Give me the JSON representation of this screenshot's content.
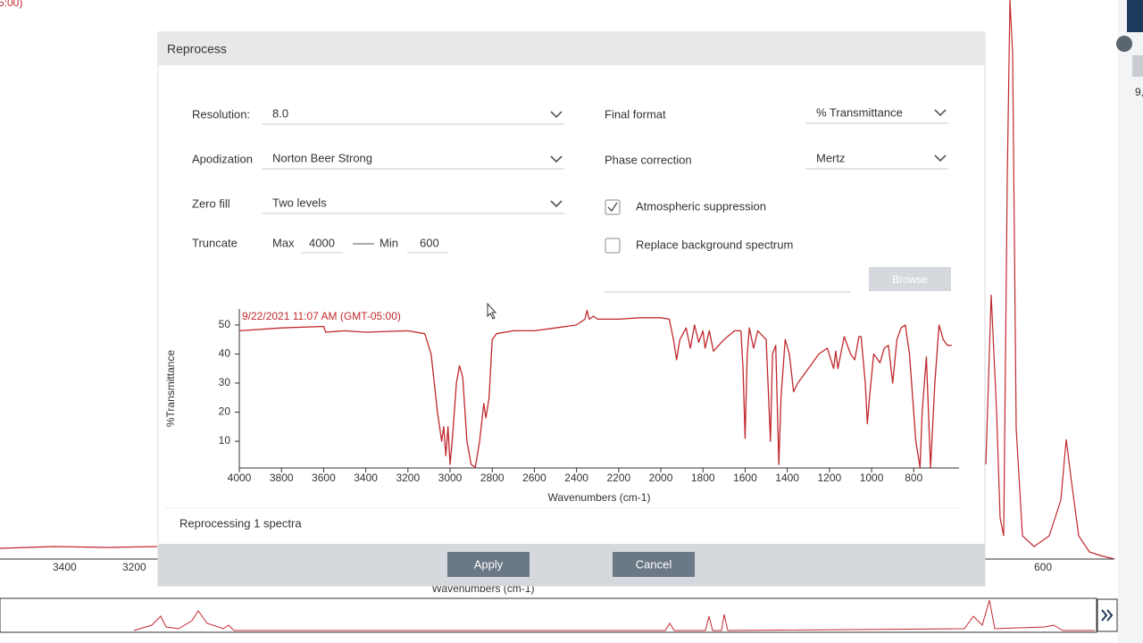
{
  "background": {
    "corner_text": "5:00)",
    "side_text": "9,",
    "xticks": [
      "3400",
      "3200",
      "600"
    ],
    "xlabel": "Wavenumbers (cm-1)"
  },
  "dialog": {
    "title": "Reprocess",
    "fields": [
      {
        "label": "Resolution:",
        "value": "8.0"
      },
      {
        "label": "Apodization",
        "value": "Norton Beer Strong"
      },
      {
        "label": "Zero fill",
        "value": "Two levels"
      }
    ],
    "right_fields": [
      {
        "label": "Final format",
        "value": "% Transmittance"
      },
      {
        "label": "Phase correction",
        "value": "Mertz"
      }
    ],
    "truncate": {
      "label": "Truncate",
      "max_label": "Max",
      "max": 4000,
      "min_label": "Min",
      "min": 600
    },
    "checkboxes": [
      {
        "label": "Atmospheric suppression",
        "checked": true
      },
      {
        "label": "Replace background spectrum",
        "checked": false
      }
    ],
    "browse": "Browse",
    "status": "Reprocessing 1 spectra",
    "buttons": [
      "Apply",
      "Cancel"
    ]
  },
  "chart_data": {
    "type": "line",
    "annotation": "9/22/2021 11:07 AM (GMT-05:00)",
    "xlabel": "Wavenumbers (cm-1)",
    "ylabel": "%Transmittance",
    "xlim": [
      4000,
      585
    ],
    "ylim": [
      0.8,
      55.5
    ],
    "xticks": [
      4000,
      3800,
      3600,
      3400,
      3200,
      3000,
      2800,
      2600,
      2400,
      2200,
      2000,
      1800,
      1600,
      1400,
      1200,
      1000,
      800
    ],
    "yticks": [
      10,
      20,
      30,
      40,
      50
    ],
    "x": [
      4000,
      3800,
      3600,
      3590,
      3500,
      3400,
      3200,
      3120,
      3090,
      3060,
      3040,
      3030,
      3020,
      3010,
      3000,
      2990,
      2970,
      2955,
      2940,
      2920,
      2900,
      2880,
      2860,
      2840,
      2830,
      2815,
      2800,
      2780,
      2700,
      2600,
      2500,
      2400,
      2360,
      2350,
      2340,
      2320,
      2300,
      2200,
      2100,
      2000,
      1960,
      1940,
      1925,
      1910,
      1880,
      1860,
      1840,
      1820,
      1800,
      1790,
      1770,
      1750,
      1700,
      1650,
      1620,
      1610,
      1600,
      1590,
      1580,
      1560,
      1540,
      1500,
      1480,
      1470,
      1455,
      1440,
      1430,
      1410,
      1390,
      1370,
      1350,
      1300,
      1250,
      1210,
      1180,
      1170,
      1160,
      1130,
      1100,
      1080,
      1060,
      1050,
      1030,
      1020,
      1010,
      990,
      960,
      940,
      920,
      900,
      880,
      860,
      840,
      820,
      790,
      770,
      760,
      740,
      720,
      700,
      680,
      660,
      640,
      620
    ],
    "series": [
      {
        "color": "#c0282d",
        "values": [
          48,
          49,
          49.5,
          47.5,
          48,
          47.5,
          48,
          47,
          40,
          20,
          10,
          15,
          5,
          15,
          2,
          10,
          30,
          36,
          32,
          10,
          2,
          1,
          10,
          23,
          18,
          25,
          45,
          47,
          48,
          48,
          49,
          50,
          52,
          55,
          52,
          53,
          52,
          52,
          52.5,
          52.5,
          52,
          45,
          38,
          45,
          49,
          42,
          50,
          44,
          48,
          42,
          48,
          41,
          45,
          48,
          48,
          35,
          11,
          40,
          49,
          42,
          48,
          45,
          10,
          40,
          43,
          2,
          25,
          45,
          40,
          27,
          30,
          35,
          40,
          42,
          35,
          41,
          35,
          46,
          40,
          38,
          46,
          46,
          30,
          16,
          25,
          40,
          37,
          42,
          43,
          30,
          45,
          49,
          50,
          40,
          10,
          1,
          20,
          39,
          1,
          30,
          50,
          45,
          43,
          43
        ]
      }
    ]
  }
}
